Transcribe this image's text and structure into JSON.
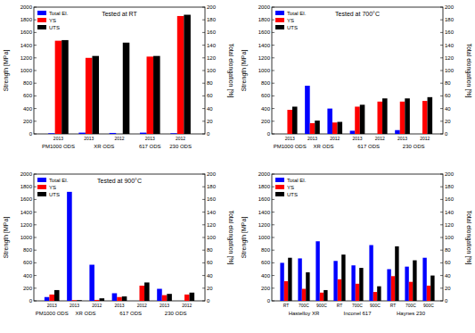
{
  "chart_data": [
    {
      "type": "bar",
      "title": "Tested at RT",
      "categories": [
        "2013",
        "2013",
        "2012",
        "2013",
        "2012"
      ],
      "groups": [
        {
          "label": "PM1000 ODS",
          "size": 1
        },
        {
          "label": "XR ODS",
          "size": 2
        },
        {
          "label": "617 ODS",
          "size": 1
        },
        {
          "label": "230 ODS",
          "size": 1
        }
      ],
      "series": [
        {
          "name": "Total El.",
          "color": "#0000ff",
          "axis": "y2",
          "values": [
            1,
            2,
            1.5,
            2,
            1
          ]
        },
        {
          "name": "YS",
          "color": "#ff0000",
          "values": [
            1470,
            1200,
            null,
            1220,
            1860
          ]
        },
        {
          "name": "UTS",
          "color": "#000000",
          "values": [
            1480,
            1230,
            1440,
            1230,
            1880
          ]
        }
      ],
      "ylabel": "Strength [MPa]",
      "y2label": "Total elongation [%]",
      "ylim": [
        0,
        2000
      ],
      "yticks": [
        0,
        200,
        400,
        600,
        800,
        1000,
        1200,
        1400,
        1600,
        1800,
        2000
      ],
      "y2lim": [
        0,
        200
      ],
      "y2ticks": [
        0,
        20,
        40,
        60,
        80,
        100,
        120,
        140,
        160,
        180,
        200
      ],
      "legend": "upper left"
    },
    {
      "type": "bar",
      "title": "Tested at 700°C",
      "categories": [
        "2013",
        "2013",
        "2012",
        "2013",
        "2012",
        "2013",
        "2012"
      ],
      "groups": [
        {
          "label": "PM1000 ODS",
          "size": 1
        },
        {
          "label": "XR ODS",
          "size": 2
        },
        {
          "label": "617 ODS",
          "size": 2
        },
        {
          "label": "230 ODS",
          "size": 2
        }
      ],
      "series": [
        {
          "name": "Total El.",
          "color": "#0000ff",
          "axis": "y2",
          "values": [
            null,
            76,
            40,
            5,
            null,
            6,
            null
          ]
        },
        {
          "name": "YS",
          "color": "#ff0000",
          "values": [
            380,
            170,
            180,
            430,
            510,
            510,
            520
          ]
        },
        {
          "name": "UTS",
          "color": "#000000",
          "values": [
            430,
            210,
            190,
            460,
            560,
            560,
            580
          ]
        }
      ],
      "ylabel": "Strength [MPa]",
      "y2label": "Total elongation [%]",
      "ylim": [
        0,
        2000
      ],
      "yticks": [
        0,
        200,
        400,
        600,
        800,
        1000,
        1200,
        1400,
        1600,
        1800,
        2000
      ],
      "y2lim": [
        0,
        200
      ],
      "y2ticks": [
        0,
        20,
        40,
        60,
        80,
        100,
        120,
        140,
        160,
        180,
        200
      ],
      "legend": "upper left"
    },
    {
      "type": "bar",
      "title": "Tested at 900°C",
      "categories": [
        "2013",
        "2013",
        "2012",
        "2013",
        "2012",
        "2013",
        "2012"
      ],
      "groups": [
        {
          "label": "PM1000 ODS",
          "size": 1
        },
        {
          "label": "XR ODS",
          "size": 2
        },
        {
          "label": "617 ODS",
          "size": 2
        },
        {
          "label": "230 ODS",
          "size": 2
        }
      ],
      "series": [
        {
          "name": "Total El.",
          "color": "#0000ff",
          "axis": "y2",
          "values": [
            6,
            172,
            57,
            12,
            null,
            19,
            null
          ]
        },
        {
          "name": "YS",
          "color": "#ff0000",
          "values": [
            100,
            10,
            15,
            60,
            240,
            90,
            100
          ]
        },
        {
          "name": "UTS",
          "color": "#000000",
          "values": [
            170,
            10,
            40,
            70,
            290,
            110,
            130
          ]
        }
      ],
      "ylabel": "Strength [MPa]",
      "y2label": "Total elongation [%]",
      "ylim": [
        0,
        2000
      ],
      "yticks": [
        0,
        200,
        400,
        600,
        800,
        1000,
        1200,
        1400,
        1600,
        1800,
        2000
      ],
      "y2lim": [
        0,
        200
      ],
      "y2ticks": [
        0,
        20,
        40,
        60,
        80,
        100,
        120,
        140,
        160,
        180,
        200
      ],
      "legend": "upper left"
    },
    {
      "type": "bar",
      "categories": [
        "RT",
        "700C",
        "900C",
        "RT",
        "700C",
        "900C",
        "RT",
        "700C",
        "900C"
      ],
      "groups": [
        {
          "label": "Hastelloy XR",
          "size": 3
        },
        {
          "label": "Inconel 617",
          "size": 3
        },
        {
          "label": "Haynes 230",
          "size": 3
        }
      ],
      "series": [
        {
          "name": "Total El.",
          "color": "#0000ff",
          "axis": "y2",
          "values": [
            60,
            67,
            94,
            63,
            56,
            88,
            50,
            54,
            68
          ]
        },
        {
          "name": "YS",
          "color": "#ff0000",
          "values": [
            310,
            190,
            130,
            340,
            270,
            140,
            390,
            300,
            240
          ]
        },
        {
          "name": "UTS",
          "color": "#000000",
          "values": [
            680,
            450,
            170,
            730,
            520,
            230,
            860,
            640,
            400
          ]
        }
      ],
      "ylabel": "Strength [MPa]",
      "y2label": "Total elongation [%]",
      "ylim": [
        0,
        2000
      ],
      "yticks": [
        0,
        200,
        400,
        600,
        800,
        1000,
        1200,
        1400,
        1600,
        1800,
        2000
      ],
      "y2lim": [
        0,
        200
      ],
      "y2ticks": [
        0,
        20,
        40,
        60,
        80,
        100,
        120,
        140,
        160,
        180,
        200
      ],
      "legend": "upper left"
    }
  ]
}
